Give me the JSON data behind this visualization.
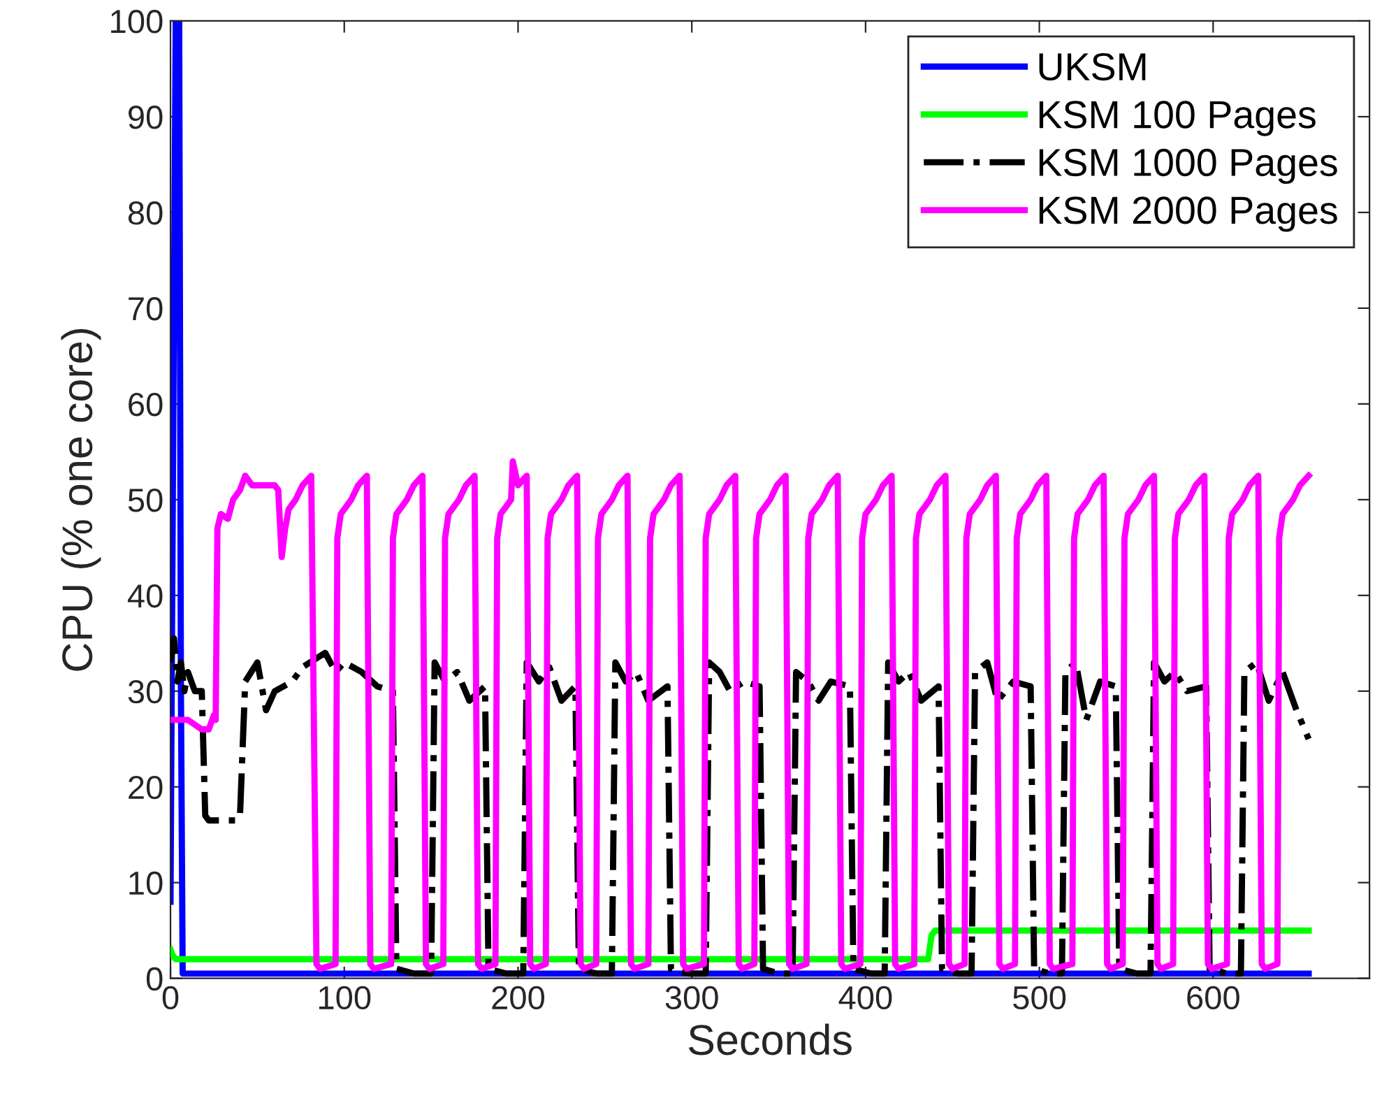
{
  "chart_data": {
    "type": "line",
    "xlabel": "Seconds",
    "ylabel": "CPU (% one core)",
    "xlim": [
      0,
      690
    ],
    "ylim": [
      0,
      100
    ],
    "xticks": [
      0,
      100,
      200,
      300,
      400,
      500,
      600
    ],
    "yticks": [
      0,
      10,
      20,
      30,
      40,
      50,
      60,
      70,
      80,
      90,
      100
    ],
    "grid": false,
    "legend": "top right",
    "marker": "none",
    "series": [
      {
        "name": "UKSM",
        "color": "#0000ff",
        "line_style": "solid",
        "x": [
          0,
          1,
          3,
          5,
          6,
          7,
          655
        ],
        "values": [
          8,
          40,
          100,
          100,
          30,
          0.5,
          0.5
        ]
      },
      {
        "name": "KSM 100 Pages",
        "color": "#00ff00",
        "line_style": "solid",
        "x": [
          0,
          1,
          3,
          436,
          438,
          440,
          655
        ],
        "values": [
          3,
          2.5,
          2,
          2,
          4.5,
          5,
          5
        ]
      },
      {
        "name": "KSM 1000 Pages",
        "color": "#000000",
        "line_style": "dashdot",
        "x": [
          0,
          2,
          4,
          6,
          8,
          10,
          14,
          18,
          20,
          22,
          30,
          38,
          40,
          43,
          50,
          55,
          60,
          70,
          76,
          89,
          95,
          100,
          110,
          119,
          128,
          130,
          140,
          150,
          152,
          158,
          165,
          172,
          181,
          183,
          193,
          203,
          205,
          212,
          218,
          225,
          233,
          235,
          245,
          254,
          256,
          262,
          268,
          275,
          286,
          288,
          298,
          308,
          310,
          316,
          322,
          330,
          339,
          341,
          350,
          358,
          360,
          367,
          373,
          380,
          391,
          393,
          403,
          411,
          413,
          419,
          425,
          432,
          442,
          444,
          453,
          461,
          463,
          470,
          476,
          485,
          495,
          497,
          506,
          513,
          515,
          521,
          527,
          535,
          544,
          546,
          556,
          564,
          566,
          572,
          578,
          585,
          596,
          598,
          608,
          616,
          618,
          625,
          632,
          640,
          648,
          655
        ],
        "values": [
          33,
          35.5,
          31,
          33,
          30,
          32,
          30,
          30,
          17,
          16.5,
          16.5,
          16.5,
          17,
          31,
          33,
          28,
          30,
          31,
          32.5,
          34,
          32,
          33,
          32,
          30.5,
          30,
          1,
          0.5,
          0.5,
          33,
          31,
          32,
          29,
          30.5,
          1,
          0.5,
          0.5,
          33,
          31,
          32.5,
          29,
          30.5,
          1,
          0.5,
          0.5,
          33,
          31,
          32,
          29,
          30.5,
          1,
          0.5,
          0.5,
          33,
          32,
          30,
          31,
          30.5,
          1,
          0.5,
          0.5,
          32,
          31,
          29,
          31,
          30.5,
          1,
          0.5,
          0.5,
          33,
          31,
          32,
          29,
          30.5,
          1,
          0.5,
          0.5,
          32,
          33,
          29,
          31,
          30.5,
          1,
          0.5,
          0.5,
          32,
          33,
          27,
          31,
          30.5,
          1,
          0.5,
          0.5,
          33,
          31,
          32,
          30,
          30.5,
          1,
          0.5,
          0.5,
          32,
          33,
          29,
          32,
          28,
          25
        ]
      },
      {
        "name": "KSM 2000 Pages",
        "color": "#ff00ff",
        "line_style": "solid",
        "x": [
          1,
          10,
          18,
          22,
          25,
          26,
          27,
          29,
          33,
          36,
          40,
          43,
          47,
          55,
          60,
          62,
          64,
          66,
          68,
          72,
          76,
          81,
          84,
          86,
          95,
          96,
          98,
          104,
          108,
          113,
          115,
          117,
          127,
          128,
          130,
          136,
          140,
          145,
          147,
          149,
          157,
          158,
          160,
          166,
          170,
          175,
          177,
          179,
          187,
          188,
          190,
          196,
          197,
          200,
          205,
          207,
          209,
          216,
          217,
          219,
          225,
          229,
          234,
          236,
          238,
          245,
          246,
          248,
          254,
          258,
          263,
          265,
          267,
          275,
          276,
          278,
          284,
          288,
          293,
          295,
          297,
          307,
          308,
          310,
          316,
          320,
          325,
          327,
          329,
          336,
          337,
          339,
          345,
          349,
          354,
          356,
          358,
          366,
          367,
          369,
          375,
          379,
          384,
          386,
          388,
          397,
          398,
          400,
          406,
          410,
          415,
          417,
          419,
          428,
          429,
          431,
          437,
          441,
          446,
          448,
          450,
          457,
          458,
          460,
          466,
          470,
          475,
          477,
          479,
          486,
          487,
          489,
          495,
          499,
          504,
          506,
          508,
          519,
          520,
          522,
          528,
          532,
          537,
          539,
          541,
          548,
          549,
          551,
          557,
          561,
          566,
          568,
          570,
          577,
          578,
          580,
          586,
          590,
          595,
          597,
          599,
          608,
          609,
          611,
          617,
          621,
          626,
          628,
          630,
          637,
          638,
          640,
          646,
          650,
          655
        ],
        "values": [
          27,
          27,
          26,
          26,
          27.5,
          27,
          47,
          48.5,
          48,
          50,
          51,
          52.5,
          51.5,
          51.5,
          51.5,
          51,
          44,
          47,
          49,
          50,
          51.5,
          52.5,
          1.5,
          1,
          1.5,
          46,
          48.5,
          50,
          51.5,
          52.5,
          1.5,
          1,
          1.5,
          46,
          48.5,
          50,
          51.5,
          52.5,
          1.5,
          1,
          1.5,
          46,
          48.5,
          50,
          51.5,
          52.5,
          1.5,
          1,
          1.5,
          46,
          48.5,
          50,
          54,
          51.5,
          52.5,
          1.5,
          1,
          1.5,
          46,
          48.5,
          50,
          51.5,
          52.5,
          1.5,
          1,
          1.5,
          46,
          48.5,
          50,
          51.5,
          52.5,
          1.5,
          1,
          1.5,
          46,
          48.5,
          50,
          51.5,
          52.5,
          1.5,
          1,
          1.5,
          46,
          48.5,
          50,
          51.5,
          52.5,
          1.5,
          1,
          1.5,
          46,
          48.5,
          50,
          51.5,
          52.5,
          1.5,
          1,
          1.5,
          46,
          48.5,
          50,
          51.5,
          52.5,
          1.5,
          1,
          1.5,
          46,
          48.5,
          50,
          51.5,
          52.5,
          1.5,
          1,
          1.5,
          46,
          48.5,
          50,
          51.5,
          52.5,
          1.5,
          1,
          1.5,
          46,
          48.5,
          50,
          51.5,
          52.5,
          1.5,
          1,
          1.5,
          46,
          48.5,
          50,
          51.5,
          52.5,
          1.5,
          1,
          1.5,
          46,
          48.5,
          50,
          51.5,
          52.5,
          1.5,
          1,
          1.5,
          46,
          48.5,
          50,
          51.5,
          52.5,
          1.5,
          1,
          1.5,
          46,
          48.5,
          50,
          51.5,
          52.5,
          1.5,
          1,
          1.5,
          46,
          48.5,
          50,
          51.5,
          52.5,
          1.5,
          1,
          1.5,
          46,
          48.5,
          50,
          51.5,
          52.5
        ]
      }
    ]
  }
}
